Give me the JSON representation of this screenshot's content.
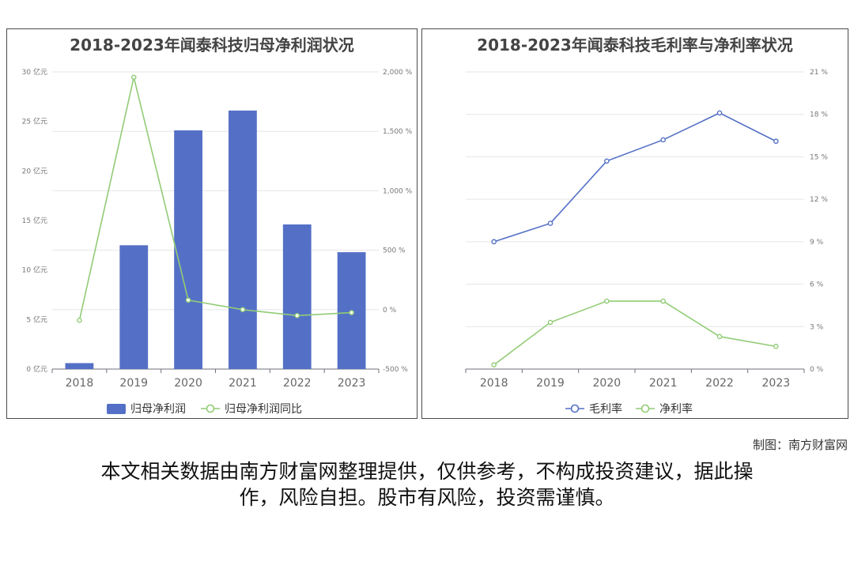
{
  "chart_data": [
    {
      "type": "bar",
      "title": "2018-2023年闻泰科技归母净利润状况",
      "categories": [
        "2018",
        "2019",
        "2020",
        "2021",
        "2022",
        "2023"
      ],
      "ylim": [
        0,
        30
      ],
      "y_ticks": [
        "0 亿元",
        "5 亿元",
        "10 亿元",
        "15 亿元",
        "20 亿元",
        "25 亿元",
        "30 亿元"
      ],
      "y2lim": [
        -500,
        2000
      ],
      "y2_ticks": [
        "-500 %",
        "0 %",
        "500 %",
        "1,000 %",
        "1,500 %",
        "2,000 %"
      ],
      "series": [
        {
          "name": "归母净利润",
          "kind": "bar",
          "axis": "left",
          "color": "#5470c6",
          "values": [
            0.6,
            12.5,
            24.1,
            26.1,
            14.6,
            11.8
          ]
        },
        {
          "name": "归母净利润同比",
          "kind": "line",
          "axis": "right",
          "color": "#91cc75",
          "values": [
            -90,
            1955,
            80,
            0,
            -50,
            -25
          ]
        }
      ],
      "legend": "bottom",
      "grid": true
    },
    {
      "type": "line",
      "title": "2018-2023年闻泰科技毛利率与净利率状况",
      "categories": [
        "2018",
        "2019",
        "2020",
        "2021",
        "2022",
        "2023"
      ],
      "y2lim": [
        0,
        21
      ],
      "y2_ticks": [
        "0 %",
        "3 %",
        "6 %",
        "9 %",
        "12 %",
        "15 %",
        "18 %",
        "21 %"
      ],
      "series": [
        {
          "name": "毛利率",
          "axis": "right",
          "color": "#5470c6",
          "values": [
            9.0,
            10.3,
            14.7,
            16.2,
            18.1,
            16.1
          ]
        },
        {
          "name": "净利率",
          "axis": "right",
          "color": "#91cc75",
          "values": [
            0.3,
            3.3,
            4.8,
            4.8,
            2.3,
            1.6
          ]
        }
      ],
      "legend": "bottom",
      "grid": true
    }
  ],
  "credit": "制图：南方财富网",
  "disclaimer_line1": "本文相关数据由南方财富网整理提供，仅供参考，不构成投资建议，据此操",
  "disclaimer_line2": "作，风险自担。股市有风险，投资需谨慎。"
}
